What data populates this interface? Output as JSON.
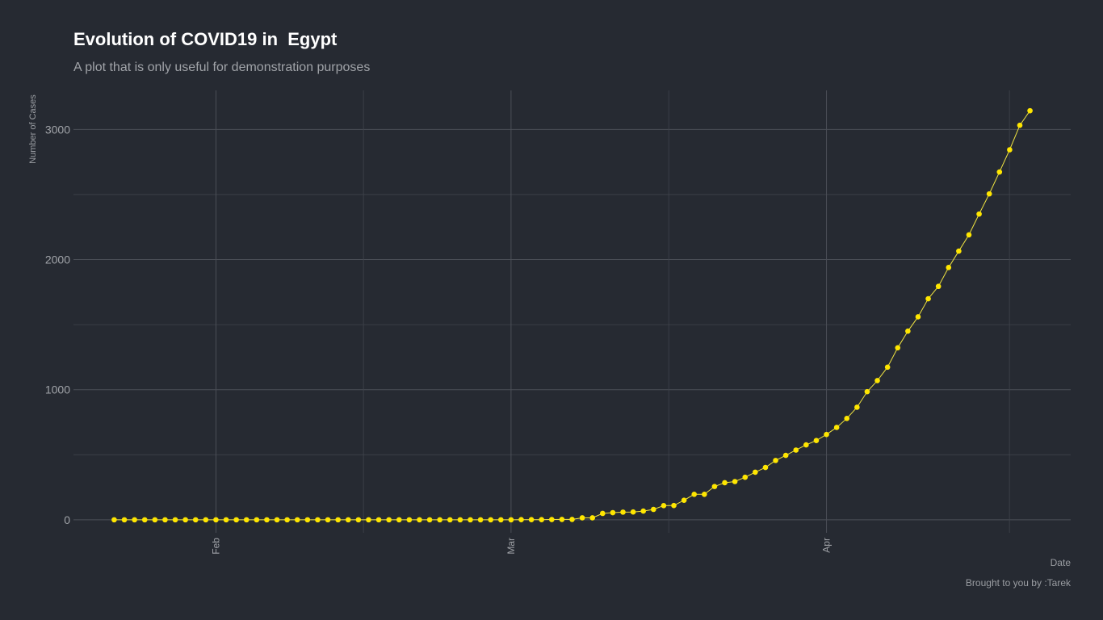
{
  "chart_data": {
    "type": "line",
    "title": "Evolution of COVID19 in  Egypt",
    "subtitle": "A plot that is only useful for demonstration purposes",
    "xlabel": "Date",
    "ylabel": "Number of Cases",
    "caption": "Brought to you by :Tarek",
    "ylim": [
      -100,
      3300
    ],
    "xlim": [
      "2020-01-18",
      "2020-04-25"
    ],
    "grid": true,
    "y_ticks": [
      0,
      1000,
      2000,
      3000
    ],
    "x_ticks": [
      {
        "label": "Feb",
        "date": "2020-02-01"
      },
      {
        "label": "Mar",
        "date": "2020-03-01"
      },
      {
        "label": "Apr",
        "date": "2020-04-01"
      }
    ],
    "line_color": "#f0e442",
    "point_color": "#ffe600",
    "series": [
      {
        "start_date": "2020-01-22",
        "values": [
          0,
          0,
          0,
          0,
          0,
          0,
          0,
          0,
          0,
          0,
          0,
          0,
          0,
          0,
          0,
          0,
          0,
          0,
          0,
          0,
          0,
          0,
          0,
          0,
          0,
          0,
          0,
          0,
          0,
          0,
          0,
          0,
          0,
          0,
          0,
          0,
          0,
          0,
          0,
          0,
          1,
          1,
          1,
          2,
          3,
          3,
          15,
          15,
          49,
          55,
          59,
          60,
          67,
          80,
          109,
          110,
          150,
          196,
          196,
          256,
          285,
          294,
          327,
          366,
          402,
          456,
          495,
          536,
          576,
          609,
          656,
          710,
          779,
          865,
          985,
          1070,
          1173,
          1322,
          1450,
          1560,
          1699,
          1794,
          1939,
          2065,
          2190,
          2350,
          2505,
          2673,
          2844,
          3032,
          3144
        ]
      }
    ]
  }
}
